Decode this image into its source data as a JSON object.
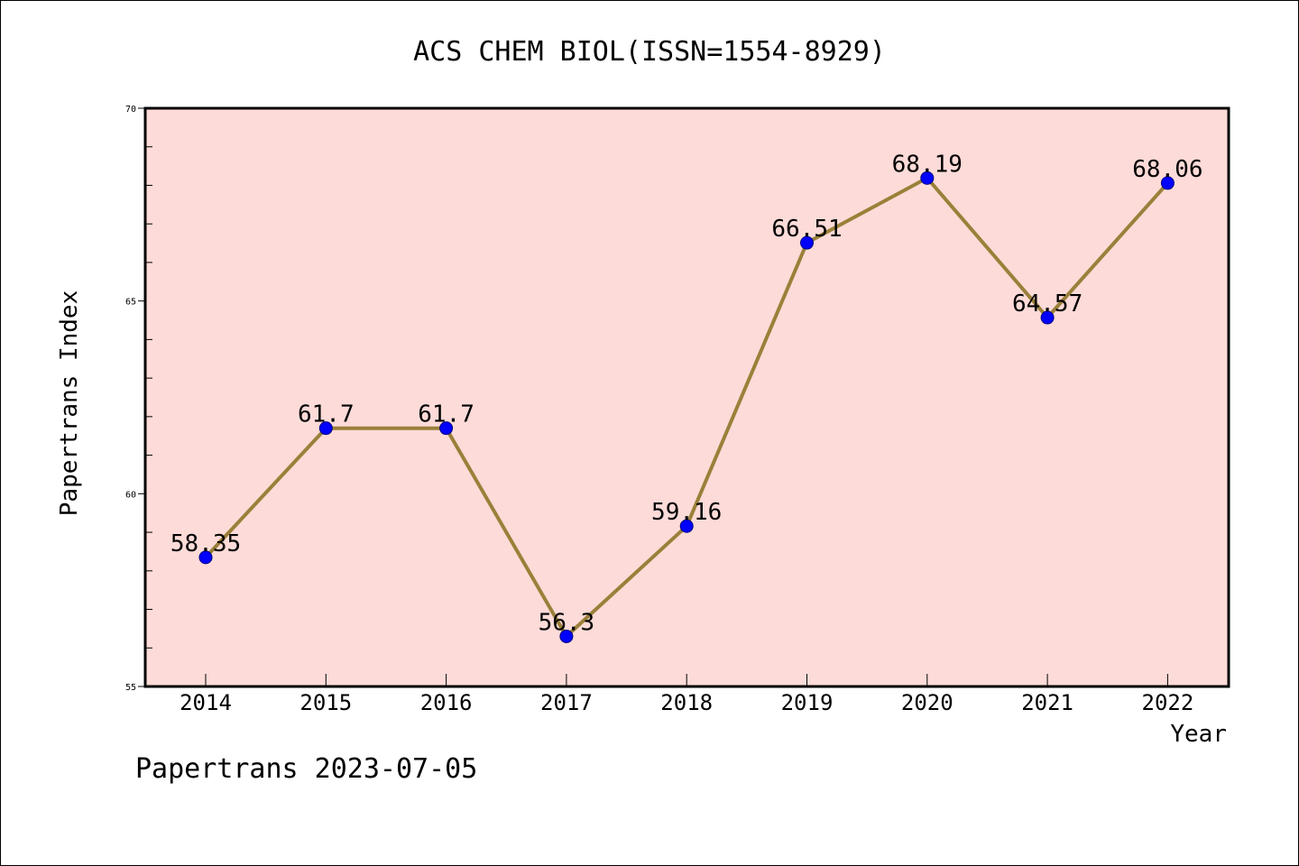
{
  "footer": {
    "credit": "Papertrans 2023-07-05"
  },
  "colors": {
    "plot_background": "#fddbd8",
    "line": "#9a8039",
    "marker": "#0000ff",
    "axis": "#000000"
  },
  "chart_data": {
    "type": "line",
    "title": "ACS CHEM BIOL(ISSN=1554-8929)",
    "xlabel": "Year",
    "ylabel": "Papertrans Index",
    "categories": [
      "2014",
      "2015",
      "2016",
      "2017",
      "2018",
      "2019",
      "2020",
      "2021",
      "2022"
    ],
    "series": [
      {
        "values": [
          58.35,
          61.7,
          61.7,
          56.3,
          59.16,
          66.51,
          68.19,
          64.57,
          68.06
        ]
      }
    ],
    "data_labels": [
      "58.35",
      "61.7",
      "61.7",
      "56.3",
      "59.16",
      "66.51",
      "68.19",
      "64.57",
      "68.06"
    ],
    "ylim": [
      55,
      70
    ],
    "yticks": [
      "55",
      "60",
      "65",
      "70"
    ],
    "grid": false,
    "legend": "none"
  }
}
